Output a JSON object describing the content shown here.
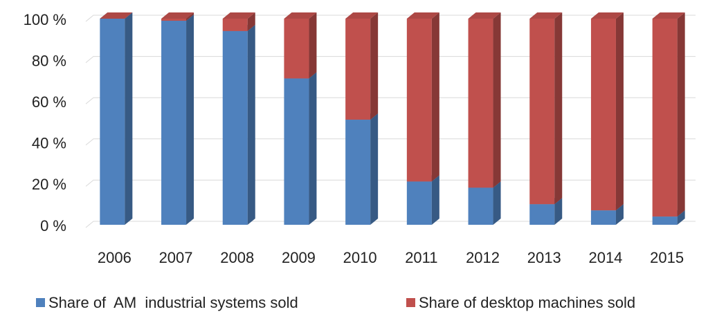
{
  "chart_data": {
    "type": "stacked-bar-3d",
    "categories": [
      "2006",
      "2007",
      "2008",
      "2009",
      "2010",
      "2011",
      "2012",
      "2013",
      "2014",
      "2015"
    ],
    "series": [
      {
        "name": "Share of  AM  industrial systems sold",
        "color": "#4f81bd",
        "values": [
          100,
          99,
          94,
          71,
          51,
          21,
          18,
          10,
          7,
          4
        ]
      },
      {
        "name": "Share of desktop machines sold",
        "color": "#c0504d",
        "values": [
          0,
          1,
          6,
          29,
          49,
          79,
          82,
          90,
          93,
          96
        ]
      }
    ],
    "ylim": [
      0,
      100
    ],
    "yticks": [
      {
        "value": 0,
        "label": "0 %"
      },
      {
        "value": 20,
        "label": "20 %"
      },
      {
        "value": 40,
        "label": "40 %"
      },
      {
        "value": 60,
        "label": "60 %"
      },
      {
        "value": 80,
        "label": "80 %"
      },
      {
        "value": 100,
        "label": "100 %"
      }
    ],
    "grid": true,
    "legend": "bottom"
  }
}
